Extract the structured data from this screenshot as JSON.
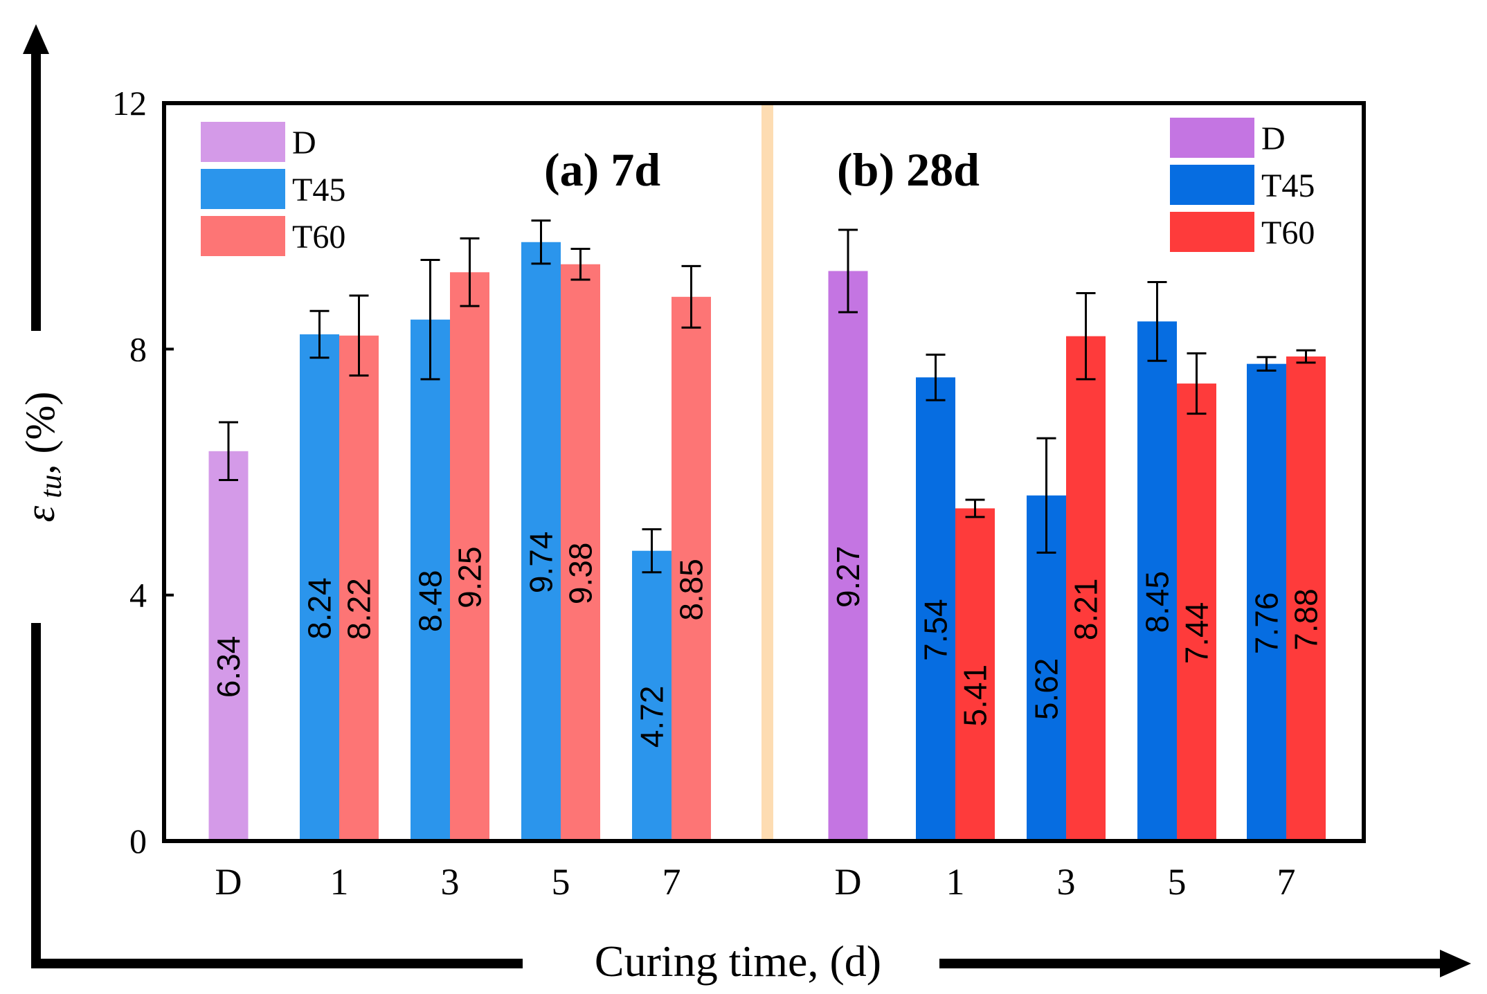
{
  "chart_data": {
    "type": "bar",
    "ylabel_symbol": "ε",
    "ylabel_sub": " tu",
    "ylabel_unit": ", (%)",
    "xlabel": "Curing time, (d)",
    "ylim": [
      0,
      12
    ],
    "yticks": [
      "0",
      "4",
      "8",
      "12"
    ],
    "panels": [
      {
        "title": "(a) 7d",
        "categories": [
          "D",
          "1",
          "3",
          "5",
          "7"
        ],
        "legend": [
          {
            "name": "D",
            "color": "#d49ae8"
          },
          {
            "name": "T45",
            "color": "#2b95ec"
          },
          {
            "name": "T60",
            "color": "#fd7575"
          }
        ],
        "groups": [
          {
            "bars": [
              {
                "series": "D",
                "value": 6.34,
                "label": "6.34",
                "error": 0.47,
                "color": "#d49ae8"
              }
            ]
          },
          {
            "bars": [
              {
                "series": "T45",
                "value": 8.24,
                "label": "8.24",
                "error": 0.38,
                "color": "#2b95ec"
              },
              {
                "series": "T60",
                "value": 8.22,
                "label": "8.22",
                "error": 0.65,
                "color": "#fd7575"
              }
            ]
          },
          {
            "bars": [
              {
                "series": "T45",
                "value": 8.48,
                "label": "8.48",
                "error": 0.97,
                "color": "#2b95ec"
              },
              {
                "series": "T60",
                "value": 9.25,
                "label": "9.25",
                "error": 0.55,
                "color": "#fd7575"
              }
            ]
          },
          {
            "bars": [
              {
                "series": "T45",
                "value": 9.74,
                "label": "9.74",
                "error": 0.35,
                "color": "#2b95ec"
              },
              {
                "series": "T60",
                "value": 9.38,
                "label": "9.38",
                "error": 0.25,
                "color": "#fd7575"
              }
            ]
          },
          {
            "bars": [
              {
                "series": "T45",
                "value": 4.72,
                "label": "4.72",
                "error": 0.35,
                "color": "#2b95ec"
              },
              {
                "series": "T60",
                "value": 8.85,
                "label": "8.85",
                "error": 0.5,
                "color": "#fd7575"
              }
            ]
          }
        ]
      },
      {
        "title": "(b) 28d",
        "categories": [
          "D",
          "1",
          "3",
          "5",
          "7"
        ],
        "legend": [
          {
            "name": "D",
            "color": "#c475e2"
          },
          {
            "name": "T45",
            "color": "#066de1"
          },
          {
            "name": "T60",
            "color": "#fe3b3b"
          }
        ],
        "groups": [
          {
            "bars": [
              {
                "series": "D",
                "value": 9.27,
                "label": "9.27",
                "error": 0.67,
                "color": "#c475e2"
              }
            ]
          },
          {
            "bars": [
              {
                "series": "T45",
                "value": 7.54,
                "label": "7.54",
                "error": 0.37,
                "color": "#066de1"
              },
              {
                "series": "T60",
                "value": 5.41,
                "label": "5.41",
                "error": 0.14,
                "color": "#fe3b3b"
              }
            ]
          },
          {
            "bars": [
              {
                "series": "T45",
                "value": 5.62,
                "label": "5.62",
                "error": 0.93,
                "color": "#066de1"
              },
              {
                "series": "T60",
                "value": 8.21,
                "label": "8.21",
                "error": 0.7,
                "color": "#fe3b3b"
              }
            ]
          },
          {
            "bars": [
              {
                "series": "T45",
                "value": 8.45,
                "label": "8.45",
                "error": 0.64,
                "color": "#066de1"
              },
              {
                "series": "T60",
                "value": 7.44,
                "label": "7.44",
                "error": 0.49,
                "color": "#fe3b3b"
              }
            ]
          },
          {
            "bars": [
              {
                "series": "T45",
                "value": 7.76,
                "label": "7.76",
                "error": 0.11,
                "color": "#066de1"
              },
              {
                "series": "T60",
                "value": 7.88,
                "label": "7.88",
                "error": 0.1,
                "color": "#fe3b3b"
              }
            ]
          }
        ]
      }
    ],
    "divider_color": "#fddcb2"
  }
}
